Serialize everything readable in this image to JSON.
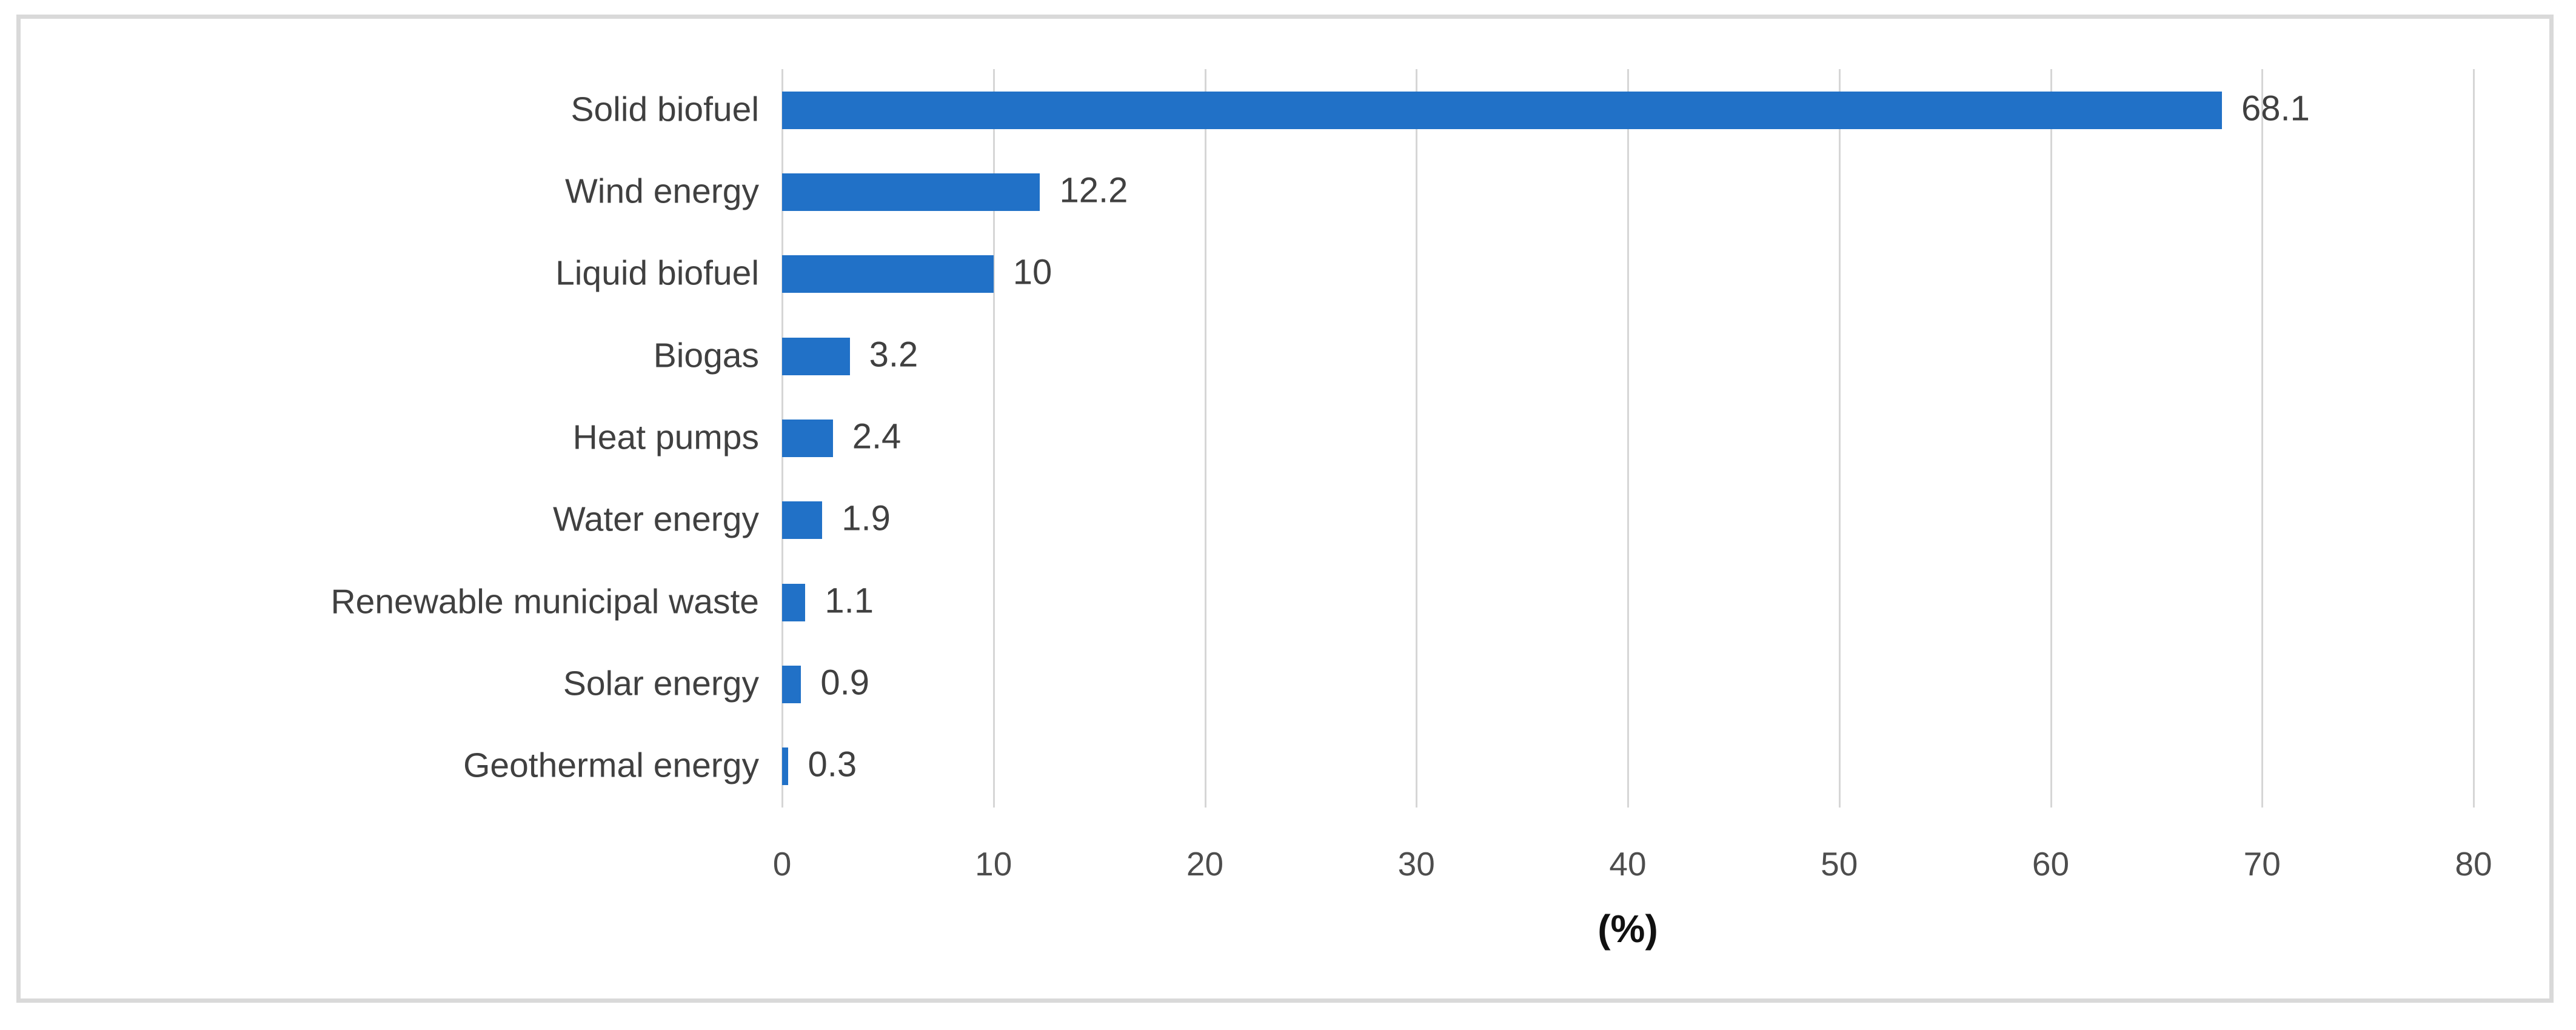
{
  "chart_data": {
    "type": "bar",
    "orientation": "horizontal",
    "title": "",
    "xlabel": "(%)",
    "ylabel": "",
    "categories": [
      "Solid biofuel",
      "Wind energy",
      "Liquid biofuel",
      "Biogas",
      "Heat pumps",
      "Water energy",
      "Renewable municipal waste",
      "Solar energy",
      "Geothermal energy"
    ],
    "values": [
      68.1,
      12.2,
      10,
      3.2,
      2.4,
      1.9,
      1.1,
      0.9,
      0.3
    ],
    "value_labels": [
      "68.1",
      "12.2",
      "10",
      "3.2",
      "2.4",
      "1.9",
      "1.1",
      "0.9",
      "0.3"
    ],
    "xlim": [
      0,
      80
    ],
    "xticks": [
      0,
      10,
      20,
      30,
      40,
      50,
      60,
      70,
      80
    ],
    "grid": "vertical-only",
    "legend": "none",
    "colors": {
      "bar": "#2171C7",
      "gridline": "#D6D6D6",
      "category_label": "#404040",
      "value_label": "#404040",
      "tick_label": "#4D4D4D",
      "axis_title": "#111111",
      "frame_border": "#D9D9D9",
      "background": "#FFFFFF"
    }
  }
}
